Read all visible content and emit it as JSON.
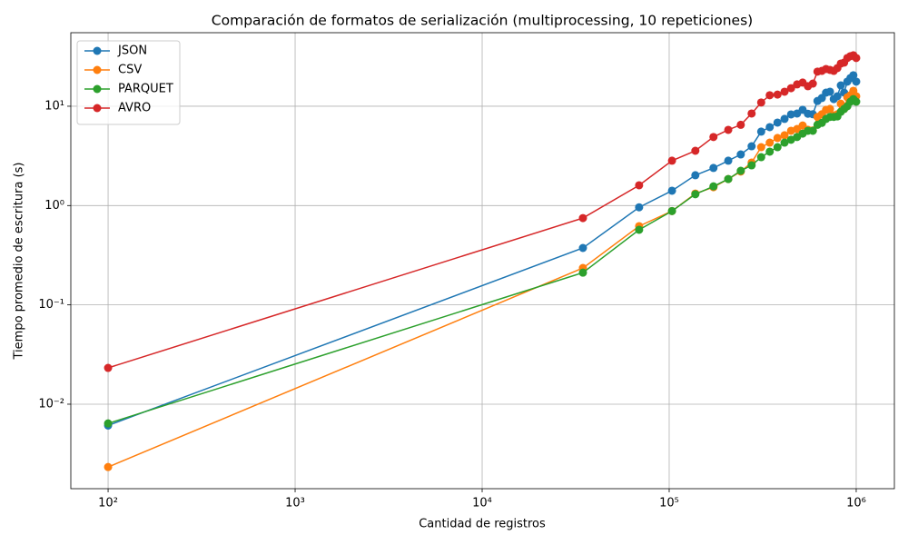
{
  "chart_data": {
    "type": "line",
    "title": "Comparación de formatos de serialización (multiprocessing, 10 repeticiones)",
    "xlabel": "Cantidad de registros",
    "ylabel": "Tiempo promedio de escritura (s)",
    "xscale": "log",
    "yscale": "log",
    "grid": true,
    "legend": "upper left",
    "xlim": [
      63.2,
      1600000
    ],
    "ylim": [
      0.00141,
      55
    ],
    "xticks": [
      {
        "value": 100,
        "label": "10²"
      },
      {
        "value": 1000,
        "label": "10³"
      },
      {
        "value": 10000,
        "label": "10⁴"
      },
      {
        "value": 100000,
        "label": "10⁵"
      },
      {
        "value": 1000000,
        "label": "10⁶"
      }
    ],
    "yticks": [
      {
        "value": 0.01,
        "label": "10⁻²"
      },
      {
        "value": 0.1,
        "label": "10⁻¹"
      },
      {
        "value": 1,
        "label": "10⁰"
      },
      {
        "value": 10,
        "label": "10¹"
      }
    ],
    "x": [
      100,
      34579,
      69059,
      103538,
      138017,
      172497,
      206976,
      241455,
      275934,
      310414,
      344893,
      379372,
      413852,
      448331,
      482810,
      517290,
      551769,
      586248,
      620728,
      655207,
      689686,
      724166,
      758645,
      793124,
      827603,
      862083,
      896562,
      931041,
      965521,
      1000000
    ],
    "series": [
      {
        "name": "JSON",
        "color": "#1f77b4",
        "values": [
          0.0061,
          0.374,
          0.96,
          1.41,
          2.02,
          2.39,
          2.83,
          3.27,
          3.95,
          5.55,
          6.16,
          6.84,
          7.45,
          8.27,
          8.45,
          9.2,
          8.4,
          8.3,
          11.3,
          12.1,
          13.7,
          14.0,
          11.8,
          12.6,
          16.2,
          13.7,
          17.7,
          19.2,
          20.5,
          17.7
        ]
      },
      {
        "name": "CSV",
        "color": "#ff7f0e",
        "values": [
          0.00233,
          0.235,
          0.62,
          0.88,
          1.32,
          1.53,
          1.85,
          2.2,
          2.71,
          3.87,
          4.3,
          4.79,
          5.1,
          5.66,
          5.9,
          6.4,
          5.8,
          5.7,
          7.8,
          8.3,
          9.2,
          9.4,
          8.1,
          8.3,
          10.6,
          9.4,
          12.3,
          12.9,
          14.3,
          12.6
        ]
      },
      {
        "name": "PARQUET",
        "color": "#2ca02c",
        "values": [
          0.0064,
          0.211,
          0.57,
          0.88,
          1.3,
          1.56,
          1.85,
          2.24,
          2.54,
          3.07,
          3.49,
          3.87,
          4.3,
          4.6,
          4.9,
          5.3,
          5.66,
          5.66,
          6.5,
          6.8,
          7.45,
          7.8,
          7.8,
          7.9,
          8.8,
          9.4,
          10.0,
          11.1,
          11.8,
          11.1
        ]
      },
      {
        "name": "AVRO",
        "color": "#d62728",
        "values": [
          0.0232,
          0.748,
          1.6,
          2.83,
          3.56,
          4.9,
          5.78,
          6.5,
          8.45,
          10.9,
          12.9,
          13.1,
          14.0,
          15.2,
          16.6,
          17.3,
          15.9,
          16.9,
          22.3,
          22.7,
          23.7,
          23.2,
          22.7,
          24.2,
          26.9,
          27.5,
          30.6,
          31.9,
          32.6,
          30.6
        ]
      }
    ]
  }
}
